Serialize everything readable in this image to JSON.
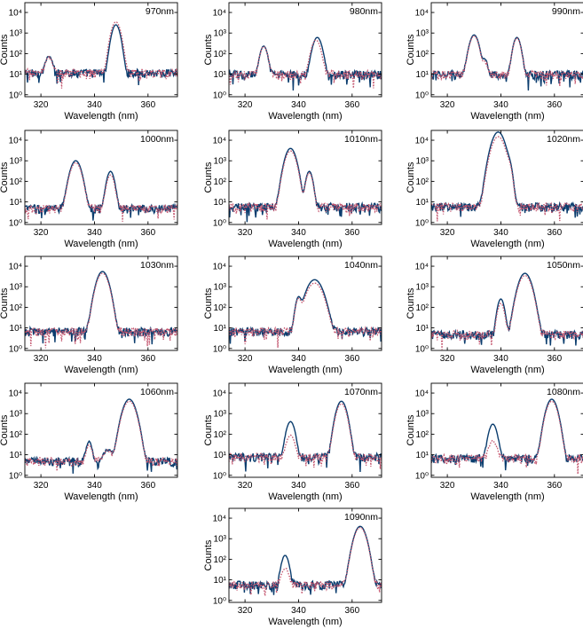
{
  "chart_data": {
    "type": "line",
    "xlabel": "Wavelength (nm)",
    "ylabel": "Counts",
    "xlim": [
      314,
      371
    ],
    "ylim": [
      0.8,
      30000
    ],
    "yscale": "log",
    "xticks": [
      320,
      340,
      360
    ],
    "xtick_labels": [
      "320",
      "340",
      "360"
    ],
    "yticks": [
      1,
      10,
      100,
      1000,
      10000
    ],
    "ytick_labels": [
      "10⁰",
      "10¹",
      "10²",
      "10³",
      "10⁴"
    ],
    "grid": false,
    "series_style": [
      {
        "color": "#0b3d6e",
        "style": "solid"
      },
      {
        "color": "#c4566f",
        "style": "dotted"
      }
    ],
    "panels": [
      {
        "label": "970nm",
        "background": 12,
        "peaks_solid": [
          [
            323,
            60,
            1.0
          ],
          [
            348,
            2500,
            1.1
          ]
        ],
        "peaks_dotted": [
          [
            323,
            55,
            1.0
          ],
          [
            348,
            3500,
            1.2
          ]
        ]
      },
      {
        "label": "980nm",
        "background": 10,
        "peaks_solid": [
          [
            327,
            220,
            1.0
          ],
          [
            347,
            600,
            1.2
          ]
        ],
        "peaks_dotted": [
          [
            327,
            210,
            1.0
          ],
          [
            346.5,
            450,
            1.2
          ]
        ]
      },
      {
        "label": "990nm",
        "background": 10,
        "peaks_solid": [
          [
            330,
            800,
            1.2
          ],
          [
            334,
            40,
            0.8
          ],
          [
            346,
            600,
            1.0
          ]
        ],
        "peaks_dotted": [
          [
            330,
            700,
            1.2
          ],
          [
            334,
            30,
            0.8
          ],
          [
            346,
            550,
            1.0
          ]
        ]
      },
      {
        "label": "1000nm",
        "background": 5,
        "peaks_solid": [
          [
            333,
            1000,
            1.4
          ],
          [
            346,
            300,
            1.0
          ]
        ],
        "peaks_dotted": [
          [
            333,
            800,
            1.4
          ],
          [
            346,
            200,
            1.0
          ]
        ]
      },
      {
        "label": "1010nm",
        "background": 6,
        "peaks_solid": [
          [
            337,
            4000,
            1.4
          ],
          [
            344,
            300,
            0.9
          ]
        ],
        "peaks_dotted": [
          [
            337,
            3000,
            1.4
          ],
          [
            344,
            250,
            0.9
          ]
        ]
      },
      {
        "label": "1020nm",
        "background": 6,
        "peaks_solid": [
          [
            339,
            25000,
            1.6
          ],
          [
            343,
            600,
            0.8
          ]
        ],
        "peaks_dotted": [
          [
            339,
            15000,
            1.6
          ],
          [
            343,
            500,
            0.8
          ]
        ]
      },
      {
        "label": "1030nm",
        "background": 7,
        "peaks_solid": [
          [
            343,
            5500,
            1.5
          ]
        ],
        "peaks_dotted": [
          [
            343,
            4500,
            1.5
          ]
        ]
      },
      {
        "label": "1040nm",
        "background": 7,
        "peaks_solid": [
          [
            340,
            300,
            0.8
          ],
          [
            346,
            2200,
            2.0
          ]
        ],
        "peaks_dotted": [
          [
            340,
            250,
            0.8
          ],
          [
            346,
            1500,
            2.0
          ]
        ]
      },
      {
        "label": "1050nm",
        "background": 5,
        "peaks_solid": [
          [
            340,
            250,
            0.9
          ],
          [
            349,
            4500,
            1.6
          ]
        ],
        "peaks_dotted": [
          [
            340,
            150,
            0.9
          ],
          [
            349,
            3500,
            1.6
          ]
        ]
      },
      {
        "label": "1060nm",
        "background": 5,
        "peaks_solid": [
          [
            338,
            40,
            0.8
          ],
          [
            345,
            12,
            1.5
          ],
          [
            353,
            5000,
            1.6
          ]
        ],
        "peaks_dotted": [
          [
            338,
            25,
            0.8
          ],
          [
            345,
            10,
            1.5
          ],
          [
            353,
            4000,
            1.6
          ]
        ]
      },
      {
        "label": "1070nm",
        "background": 8,
        "peaks_solid": [
          [
            337,
            400,
            1.1
          ],
          [
            356,
            4000,
            1.3
          ]
        ],
        "peaks_dotted": [
          [
            337,
            80,
            1.1
          ],
          [
            356,
            3000,
            1.3
          ]
        ]
      },
      {
        "label": "1080nm",
        "background": 7,
        "peaks_solid": [
          [
            337,
            300,
            1.1
          ],
          [
            359,
            5000,
            1.4
          ]
        ],
        "peaks_dotted": [
          [
            337,
            40,
            1.1
          ],
          [
            359,
            4000,
            1.4
          ]
        ]
      },
      {
        "label": "1090nm",
        "background": 6,
        "peaks_solid": [
          [
            335,
            150,
            1.0
          ],
          [
            363,
            4000,
            1.5
          ]
        ],
        "peaks_dotted": [
          [
            335,
            30,
            1.0
          ],
          [
            363,
            3500,
            1.5
          ]
        ]
      }
    ]
  }
}
